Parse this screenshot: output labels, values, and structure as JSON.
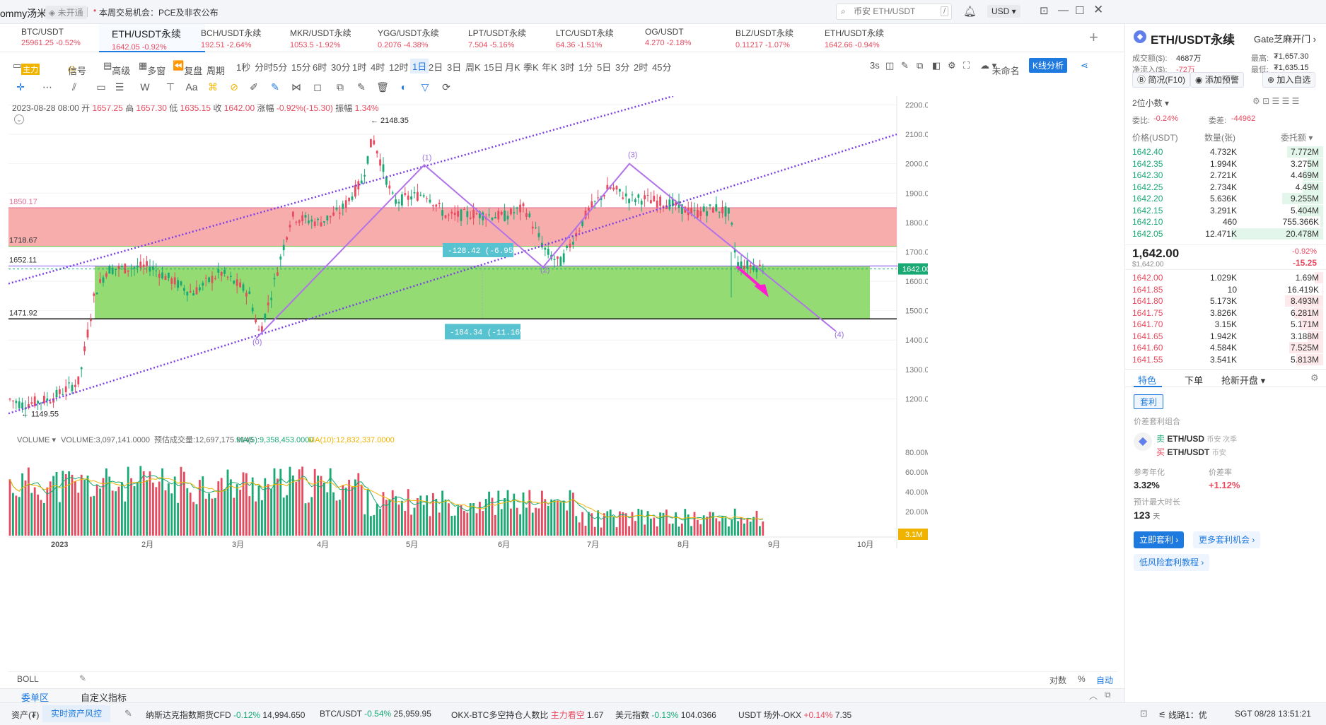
{
  "app": {
    "user": "ommy汤米",
    "auth_badge": "未开通",
    "notice": "本周交易机会：PCE及非农公布",
    "search_placeholder": "币安 ETH/USDT",
    "search_key": "/",
    "currency": "USD"
  },
  "tickers": [
    {
      "name": "BTC/USDT",
      "price": "25961.25",
      "change": "-0.52%",
      "active": false
    },
    {
      "name": "ETH/USDT永续",
      "price": "1642.05",
      "change": "-0.92%",
      "active": true
    },
    {
      "name": "BCH/USDT永续",
      "price": "192.51",
      "change": "-2.64%",
      "active": false
    },
    {
      "name": "MKR/USDT永续",
      "price": "1053.5",
      "change": "-1.92%",
      "active": false
    },
    {
      "name": "YGG/USDT永续",
      "price": "0.2076",
      "change": "-4.38%",
      "active": false
    },
    {
      "name": "LPT/USDT永续",
      "price": "7.504",
      "change": "-5.16%",
      "active": false
    },
    {
      "name": "LTC/USDT永续",
      "price": "64.36",
      "change": "-1.51%",
      "active": false
    },
    {
      "name": "OG/USDT",
      "price": "4.270",
      "change": "-2.18%",
      "active": false
    },
    {
      "name": "BLZ/USDT永续",
      "price": "0.11217",
      "change": "-1.07%",
      "active": false
    },
    {
      "name": "ETH/USDT永续",
      "price": "1642.66",
      "change": "-0.94%",
      "active": false
    }
  ],
  "toolbar": {
    "indicator": "指标",
    "main_badge": "主力",
    "signal": "信号",
    "advanced": "高级",
    "multi": "多窗",
    "replay": "复盘",
    "period": "周期",
    "periods": [
      "1秒",
      "分时",
      "5分",
      "15分",
      "6时",
      "30分",
      "1时",
      "4时",
      "12时",
      "1日",
      "2日",
      "3日",
      "周K",
      "15日",
      "月K",
      "季K",
      "年K",
      "3时",
      "1分",
      "5日",
      "3分",
      "2时",
      "45分"
    ],
    "active_period": "1日",
    "interval_3s": "3s",
    "unnamed": "未命名",
    "analysis": "K线分析"
  },
  "ohlc": {
    "date": "2023-08-28 08:00",
    "open_label": "开",
    "open": "1657.25",
    "high_label": "高",
    "high": "1657.30",
    "low_label": "低",
    "low": "1635.15",
    "close_label": "收",
    "close": "1642.00",
    "chg_label": "涨幅",
    "chg": "-0.92%(-15.30)",
    "amp_label": "振幅",
    "amp": "1.34%"
  },
  "chart_data": {
    "type": "candlestick",
    "y_ticks": [
      "2200.00",
      "2100.00",
      "2000.00",
      "1900.00",
      "1800.00",
      "1700.00",
      "1600.00",
      "1500.00",
      "1400.00",
      "1300.00",
      "1200.00"
    ],
    "ylim": [
      1100,
      2230
    ],
    "x_ticks": [
      "2023",
      "2月",
      "3月",
      "4月",
      "5月",
      "6月",
      "7月",
      "8月",
      "9月",
      "10月"
    ],
    "high_marker": "2148.35",
    "low_marker": "1149.55",
    "last_price": "1642.00",
    "zones": [
      {
        "top": 1850.17,
        "bottom": 1718.67,
        "color": "#f8a9a9",
        "top_label": "1850.17",
        "bottom_label": "1718.67"
      },
      {
        "top": 1652.11,
        "bottom": 1471.92,
        "color": "#8ed96b",
        "top_label": "1652.11",
        "bottom_label": "1471.92"
      }
    ],
    "measures": [
      "-128.42 (-6.95%)",
      "-184.34 (-11.16%)"
    ],
    "wave_labels": [
      "(0)",
      "(1)",
      "(2)",
      "(3)",
      "(4)"
    ],
    "volume": {
      "label": "VOLUME",
      "value_label": "VOLUME:3,097,141.0000",
      "est_label": "预估成交量:12,697,175.9146",
      "ma5_label": "MA(5):9,358,453.0000",
      "ma10_label": "MA(10):12,832,337.0000",
      "y_ticks": [
        "80.00M",
        "60.00M",
        "40.00M",
        "20.00M"
      ],
      "last": "3.1M"
    }
  },
  "bottom_bar": {
    "indicator": "BOLL",
    "log": "对数",
    "pct": "%",
    "auto": "自动",
    "tab1": "委单区",
    "tab2": "自定义指标"
  },
  "panel": {
    "symbol": "ETH/USDT永续",
    "exchange": "Gate芝麻开门",
    "turnover_label": "成交额($):",
    "turnover": "4687万",
    "high_label": "最高:",
    "high": "₮1,657.30",
    "netflow_label": "净流入($):",
    "netflow": "-72万",
    "low_label": "最低:",
    "low": "₮1,635.15",
    "btn_f10": "简况(F10)",
    "btn_alert": "添加预警",
    "btn_fav": "加入自选",
    "decimals": "2位小数",
    "ratio_label": "委比:",
    "ratio": "-0.24%",
    "diff_label": "委差:",
    "diff": "-44962",
    "col_price": "价格(USDT)",
    "col_qty": "数量(张)",
    "col_amt": "委托额",
    "asks": [
      [
        "1642.40",
        "4.732K",
        "7.772M",
        0.35
      ],
      [
        "1642.35",
        "1.994K",
        "3.275M",
        0.15
      ],
      [
        "1642.30",
        "2.721K",
        "4.469M",
        0.2
      ],
      [
        "1642.25",
        "2.734K",
        "4.49M",
        0.2
      ],
      [
        "1642.20",
        "5.636K",
        "9.255M",
        0.4
      ],
      [
        "1642.15",
        "3.291K",
        "5.404M",
        0.25
      ],
      [
        "1642.10",
        "460",
        "755.366K",
        0.03
      ],
      [
        "1642.05",
        "12.471K",
        "20.478M",
        0.9
      ]
    ],
    "last": "1,642.00",
    "last_sub": "$1,642.00",
    "last_pct": "-0.92%",
    "last_chg": "-15.25",
    "bids": [
      [
        "1642.00",
        "1.029K",
        "1.69M",
        0.08
      ],
      [
        "1641.85",
        "10",
        "16.419K",
        0.01
      ],
      [
        "1641.80",
        "5.173K",
        "8.493M",
        0.37
      ],
      [
        "1641.75",
        "3.826K",
        "6.281M",
        0.28
      ],
      [
        "1641.70",
        "3.15K",
        "5.171M",
        0.23
      ],
      [
        "1641.65",
        "1.942K",
        "3.188M",
        0.15
      ],
      [
        "1641.60",
        "4.584K",
        "7.525M",
        0.33
      ],
      [
        "1641.55",
        "3.541K",
        "5.813M",
        0.26
      ]
    ],
    "tabs": [
      "特色",
      "下单",
      "抢新开盘"
    ],
    "arb_badge": "套利",
    "arb_title": "价差套利组合",
    "sell_label": "卖",
    "sell_pair": "ETH/USD",
    "sell_ex": "币安 次季",
    "buy_label": "买",
    "buy_pair": "ETH/USDT",
    "buy_ex": "币安",
    "annual_label": "参考年化",
    "annual": "3.32%",
    "spread_label": "价差率",
    "spread": "+1.12%",
    "duration_label": "预计最大时长",
    "duration": "123",
    "duration_unit": "天",
    "btn_arb": "立即套利",
    "btn_more": "更多套利机会",
    "btn_tutorial": "低风险套利教程"
  },
  "footer": {
    "assets": "资产(₮)",
    "risk": "实时资产风控",
    "items": [
      {
        "name": "纳斯达克指数期货CFD",
        "chg": "-0.12%",
        "val": "14,994.650"
      },
      {
        "name": "BTC/USDT",
        "chg": "-0.54%",
        "val": "25,959.95"
      },
      {
        "name": "OKX-BTC多空持仓人数比",
        "chg": "主力看空",
        "val": "1.67"
      },
      {
        "name": "美元指数",
        "chg": "-0.13%",
        "val": "104.0366"
      },
      {
        "name": "USDT 场外-OKX",
        "chg": "+0.14%",
        "val": "7.35"
      }
    ],
    "line": "线路1：优",
    "time": "SGT 08/28 13:51:21"
  },
  "colors": {
    "up": "#e84a5f",
    "down": "#19a974",
    "accent": "#1f7ae0",
    "purple": "#7b3fe4"
  }
}
